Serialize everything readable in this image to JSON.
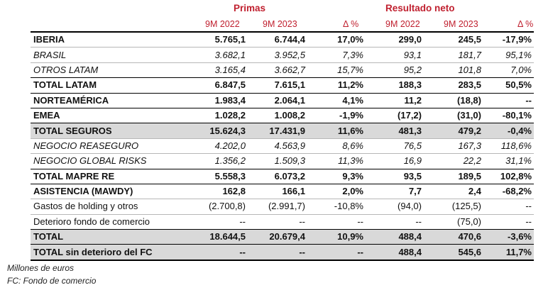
{
  "headers": {
    "primas": "Primas",
    "resultado": "Resultado neto",
    "cols": [
      "9M 2022",
      "9M 2023",
      "Δ %",
      "9M 2022",
      "9M 2023",
      "Δ %"
    ]
  },
  "rows": [
    {
      "label": "IBERIA",
      "style": "bold",
      "values": [
        "5.765,1",
        "6.744,4",
        "17,0%",
        "299,0",
        "245,5",
        "-17,9%"
      ]
    },
    {
      "label": "BRASIL",
      "style": "italic",
      "values": [
        "3.682,1",
        "3.952,5",
        "7,3%",
        "93,1",
        "181,7",
        "95,1%"
      ]
    },
    {
      "label": "OTROS LATAM",
      "style": "italic",
      "values": [
        "3.165,4",
        "3.662,7",
        "15,7%",
        "95,2",
        "101,8",
        "7,0%"
      ]
    },
    {
      "label": "TOTAL LATAM",
      "style": "bold",
      "values": [
        "6.847,5",
        "7.615,1",
        "11,2%",
        "188,3",
        "283,5",
        "50,5%"
      ]
    },
    {
      "label": "NORTEAMÉRICA",
      "style": "bold",
      "values": [
        "1.983,4",
        "2.064,1",
        "4,1%",
        "11,2",
        "(18,8)",
        "--"
      ]
    },
    {
      "label": "EMEA",
      "style": "bold",
      "values": [
        "1.028,2",
        "1.008,2",
        "-1,9%",
        "(17,2)",
        "(31,0)",
        "-80,1%"
      ]
    },
    {
      "label": "TOTAL SEGUROS",
      "style": "bold gray",
      "values": [
        "15.624,3",
        "17.431,9",
        "11,6%",
        "481,3",
        "479,2",
        "-0,4%"
      ]
    },
    {
      "label": "NEGOCIO REASEGURO",
      "style": "italic",
      "values": [
        "4.202,0",
        "4.563,9",
        "8,6%",
        "76,5",
        "167,3",
        "118,6%"
      ]
    },
    {
      "label": "NEGOCIO GLOBAL RISKS",
      "style": "italic",
      "values": [
        "1.356,2",
        "1.509,3",
        "11,3%",
        "16,9",
        "22,2",
        "31,1%"
      ]
    },
    {
      "label": "TOTAL MAPRE RE",
      "style": "bold",
      "values": [
        "5.558,3",
        "6.073,2",
        "9,3%",
        "93,5",
        "189,5",
        "102,8%"
      ]
    },
    {
      "label": "ASISTENCIA (MAWDY)",
      "style": "bold",
      "values": [
        "162,8",
        "166,1",
        "2,0%",
        "7,7",
        "2,4",
        "-68,2%"
      ]
    },
    {
      "label": "Gastos de holding y otros",
      "style": "normal",
      "values": [
        "(2.700,8)",
        "(2.991,7)",
        "-10,8%",
        "(94,0)",
        "(125,5)",
        "--"
      ]
    },
    {
      "label": "Deterioro fondo de comercio",
      "style": "normal",
      "values": [
        "--",
        "--",
        "--",
        "--",
        "(75,0)",
        "--"
      ]
    },
    {
      "label": "TOTAL",
      "style": "bold gray",
      "values": [
        "18.644,5",
        "20.679,4",
        "10,9%",
        "488,4",
        "470,6",
        "-3,6%"
      ]
    },
    {
      "label": "TOTAL sin deterioro del FC",
      "style": "bold gray",
      "values": [
        "--",
        "--",
        "--",
        "488,4",
        "545,6",
        "11,7%"
      ]
    }
  ],
  "notes": [
    "Millones de euros",
    "FC: Fondo de comercio"
  ]
}
